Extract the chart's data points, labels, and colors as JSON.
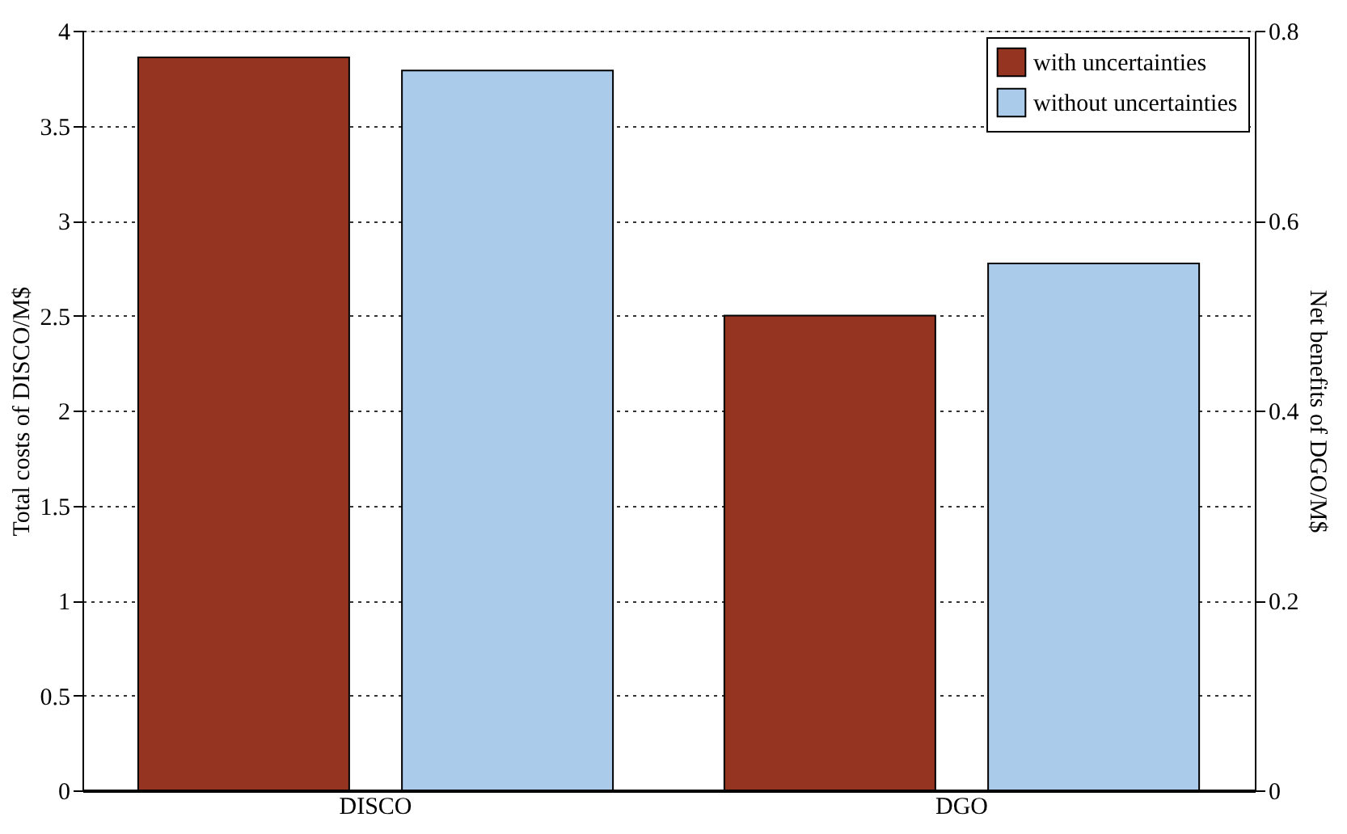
{
  "chart_data": {
    "type": "bar",
    "categories": [
      "DISCO",
      "DGO"
    ],
    "ylabel": "Total costs of DISCO/M$",
    "y2label": "Net benefits of DGO/M$",
    "series": [
      {
        "name": "with uncertainties",
        "color": "#953521",
        "values": [
          3.86,
          null
        ]
      },
      {
        "name": "without uncertainties",
        "color": "#aacbea",
        "values": [
          3.79,
          null
        ]
      },
      {
        "color": "#953521",
        "axis": "y2",
        "values": [
          null,
          0.5
        ]
      },
      {
        "color": "#aacbea",
        "axis": "y2",
        "values": [
          null,
          0.555
        ]
      }
    ],
    "ylim": [
      0,
      4
    ],
    "yticks": [
      0,
      0.5,
      1,
      1.5,
      2,
      2.5,
      3,
      3.5,
      4
    ],
    "y2lim": [
      0,
      0.8
    ],
    "y2ticks": [
      0,
      0.2,
      0.4,
      0.6,
      0.8
    ],
    "grid": "y",
    "legend": "top right"
  }
}
